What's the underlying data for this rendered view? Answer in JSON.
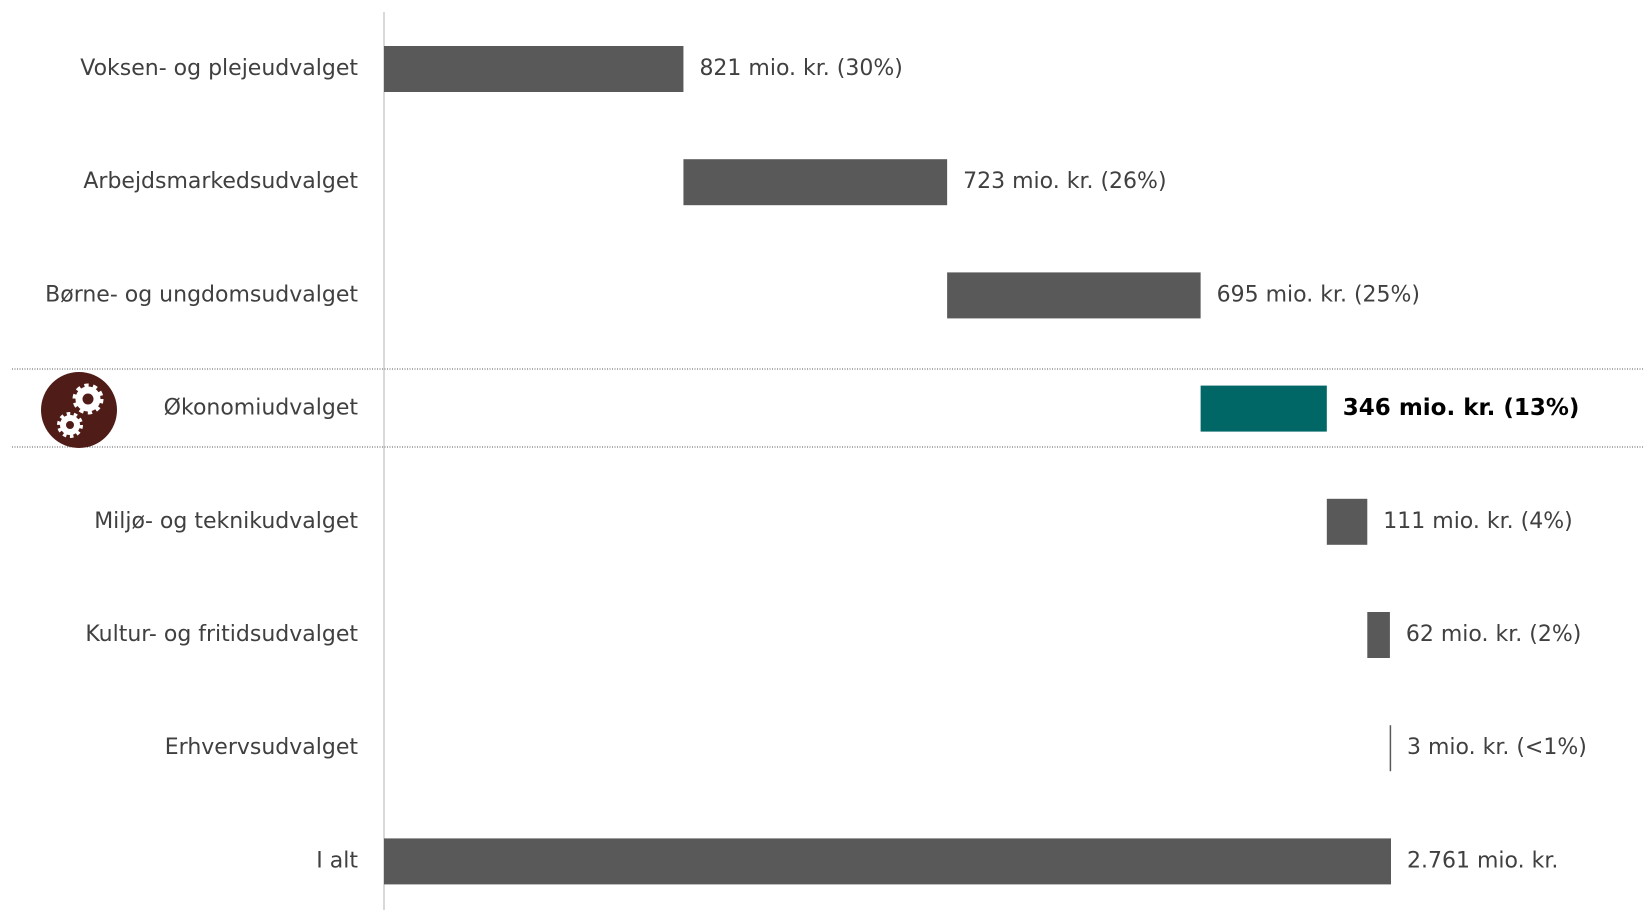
{
  "chart_data": {
    "type": "waterfall",
    "categories": [
      "Voksen- og plejeudvalget",
      "Arbejdsmarkedsudvalget",
      "Børne- og ungdomsudvalget",
      "Økonomiudvalget",
      "Miljø- og teknikudvalget",
      "Kultur- og fritidsudvalget",
      "Erhvervsudvalget",
      "I alt"
    ],
    "values": [
      821,
      723,
      695,
      346,
      111,
      62,
      3,
      2761
    ],
    "value_labels": [
      "821 mio. kr. (30%)",
      "723 mio. kr. (26%)",
      "695 mio. kr. (25%)",
      "346 mio. kr. (13%)",
      "111 mio. kr. (4%)",
      "62 mio. kr. (2%)",
      "3 mio. kr. (<1%)",
      "2.761 mio. kr."
    ],
    "colors": [
      "#595959",
      "#595959",
      "#595959",
      "#006666",
      "#595959",
      "#595959",
      "#595959",
      "#595959"
    ],
    "color": "#595959",
    "total_last": true
  }
}
